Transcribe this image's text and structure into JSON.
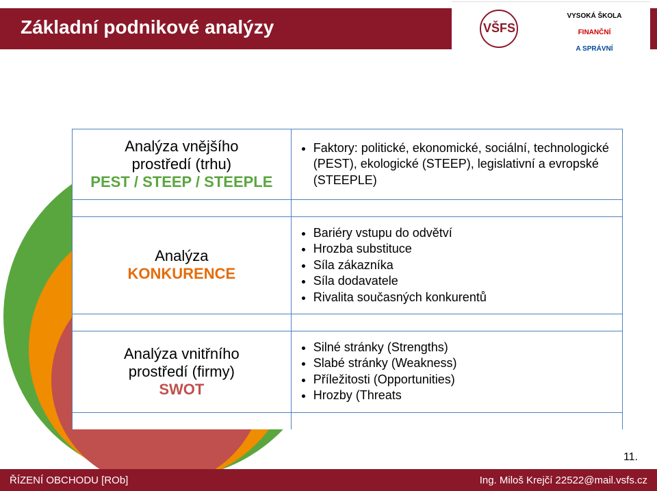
{
  "header": {
    "title": "Základní podnikové analýzy",
    "band_color": "#8a1829",
    "logo1_abbr": "VŠFS",
    "logo2_line1": "VYSOKÁ ŠKOLA",
    "logo2_line2": "FINANČNÍ",
    "logo2_line3": "A SPRÁVNÍ"
  },
  "circles": {
    "outer_color": "#5aa63e",
    "mid_color": "#f08c00",
    "inner_color": "#c0504d"
  },
  "rows": [
    {
      "left_lines": [
        "Analýza vnějšího",
        "prostředí (trhu)"
      ],
      "left_accent": "PEST / STEEP / STEEPLE",
      "accent_class": "lbl-green",
      "bullets": [
        "Faktory: politické, ekonomické, sociální, technologické (PEST), ekologické (STEEP), legislativní a evropské (STEEPLE)"
      ]
    },
    {
      "left_lines": [
        "Analýza"
      ],
      "left_accent": "KONKURENCE",
      "accent_class": "lbl-orange",
      "bullets": [
        "Bariéry vstupu do odvětví",
        "Hrozba substituce",
        "Síla zákazníka",
        "Síla dodavatele",
        "Rivalita současných konkurentů"
      ]
    },
    {
      "left_lines": [
        "Analýza vnitřního",
        "prostředí (firmy)"
      ],
      "left_accent": "SWOT",
      "accent_class": "lbl-red",
      "bullets": [
        "Silné stránky (Strengths)",
        "Slabé stránky (Weakness)",
        "Příležitosti (Opportunities)",
        "Hrozby (Threats"
      ]
    }
  ],
  "footer": {
    "left": "ŘÍZENÍ OBCHODU [ROb]",
    "right": "Ing. Miloš Krejčí  22522@mail.vsfs.cz"
  },
  "page_number": "11.",
  "table_border_color": "#4f81bd"
}
